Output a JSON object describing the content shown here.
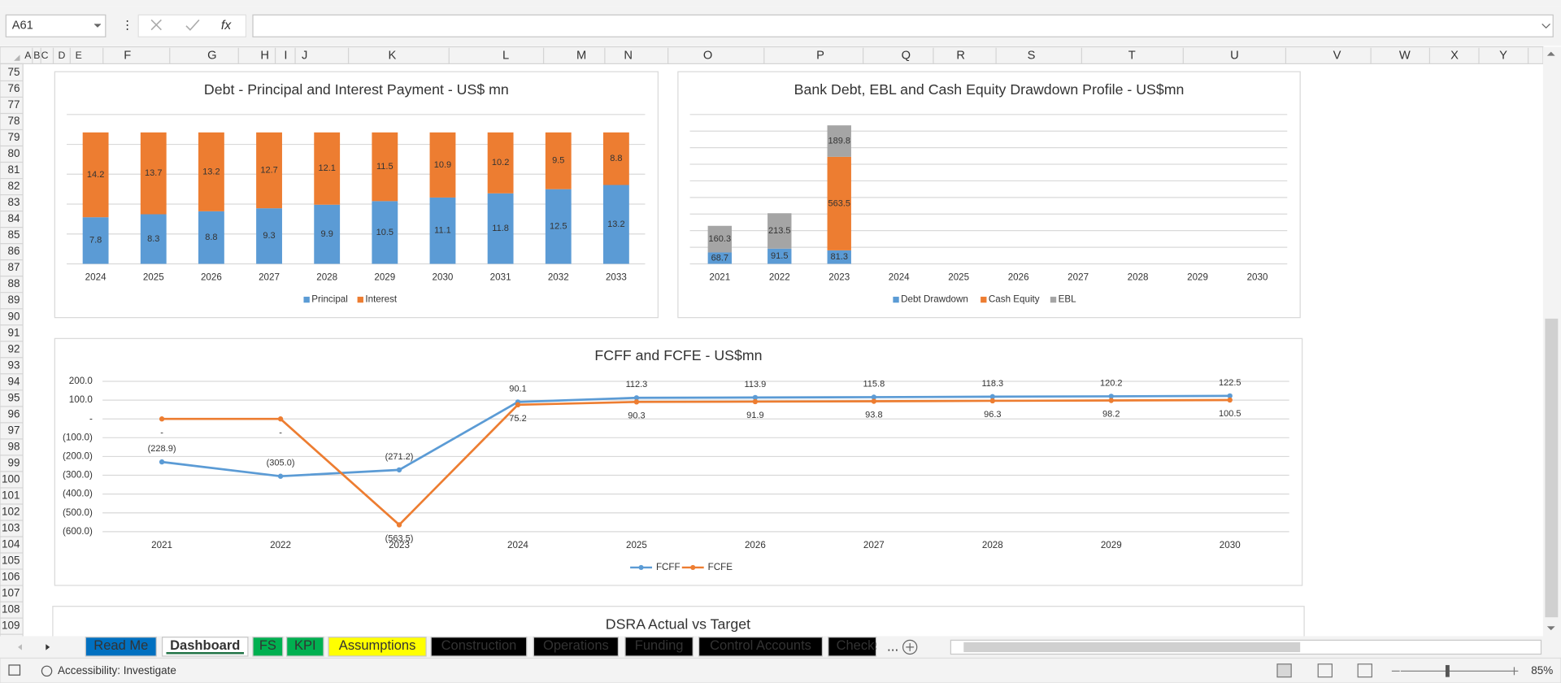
{
  "name_box": "A61",
  "formula_icon": "fx",
  "column_headers": [
    "A",
    "B",
    "C",
    "D",
    "E",
    "F",
    "G",
    "H",
    "I",
    "J",
    "K",
    "L",
    "M",
    "N",
    "O",
    "P",
    "Q",
    "R",
    "S",
    "T",
    "U",
    "V",
    "W",
    "X",
    "Y"
  ],
  "row_headers": [
    75,
    76,
    77,
    78,
    79,
    80,
    81,
    82,
    83,
    84,
    85,
    86,
    87,
    88,
    89,
    90,
    91,
    92,
    93,
    94,
    95,
    96,
    97,
    98,
    99,
    100,
    101,
    102,
    103,
    104,
    105,
    106,
    107,
    108,
    109
  ],
  "chart_data": [
    {
      "type": "bar",
      "stacked": true,
      "title": "Debt - Principal and Interest Payment - US$ mn",
      "categories": [
        "2024",
        "2025",
        "2026",
        "2027",
        "2028",
        "2029",
        "2030",
        "2031",
        "2032",
        "2033"
      ],
      "series": [
        {
          "name": "Principal",
          "color": "#5b9bd5",
          "values": [
            7.8,
            8.3,
            8.8,
            9.3,
            9.9,
            10.5,
            11.1,
            11.8,
            12.5,
            13.2
          ]
        },
        {
          "name": "Interest",
          "color": "#ed7d31",
          "values": [
            14.2,
            13.7,
            13.2,
            12.7,
            12.1,
            11.5,
            10.9,
            10.2,
            9.5,
            8.8
          ]
        }
      ],
      "ylim": [
        0,
        25
      ],
      "yticks": [
        0,
        5,
        10,
        15,
        20,
        25
      ],
      "grid": true,
      "show_y_tick_labels": false,
      "legend": "bottom"
    },
    {
      "type": "bar",
      "stacked": true,
      "title": "Bank Debt, EBL and Cash Equity Drawdown Profile - US$mn",
      "categories": [
        "2021",
        "2022",
        "2023",
        "2024",
        "2025",
        "2026",
        "2027",
        "2028",
        "2029",
        "2030"
      ],
      "series": [
        {
          "name": "Debt Drawdown",
          "color": "#5b9bd5",
          "values": [
            68.7,
            91.5,
            81.3,
            0,
            0,
            0,
            0,
            0,
            0,
            0
          ]
        },
        {
          "name": "Cash Equity",
          "color": "#ed7d31",
          "values": [
            0,
            0,
            563.5,
            0,
            0,
            0,
            0,
            0,
            0,
            0
          ]
        },
        {
          "name": "EBL",
          "color": "#a5a5a5",
          "values": [
            160.3,
            213.5,
            189.8,
            0,
            0,
            0,
            0,
            0,
            0,
            0
          ]
        }
      ],
      "ylim": [
        0,
        900
      ],
      "yticks": [
        0,
        100,
        200,
        300,
        400,
        500,
        600,
        700,
        800,
        900
      ],
      "grid": true,
      "show_y_tick_labels": false,
      "legend": "bottom"
    },
    {
      "type": "line",
      "title": "FCFF and FCFE - US$mn",
      "categories": [
        "2021",
        "2022",
        "2023",
        "2024",
        "2025",
        "2026",
        "2027",
        "2028",
        "2029",
        "2030"
      ],
      "series": [
        {
          "name": "FCFF",
          "color": "#5b9bd5",
          "values": [
            -228.9,
            -305.0,
            -271.2,
            90.1,
            112.3,
            113.9,
            115.8,
            118.3,
            120.2,
            122.5
          ],
          "value_labels": [
            "(228.9)",
            "(305.0)",
            "(271.2)",
            "90.1",
            "112.3",
            "113.9",
            "115.8",
            "118.3",
            "120.2",
            "122.5"
          ]
        },
        {
          "name": "FCFE",
          "color": "#ed7d31",
          "values": [
            0,
            0,
            -563.5,
            75.2,
            90.3,
            91.9,
            93.8,
            96.3,
            98.2,
            100.5
          ],
          "value_labels": [
            "-",
            "-",
            "(563.5)",
            "75.2",
            "90.3",
            "91.9",
            "93.8",
            "96.3",
            "98.2",
            "100.5"
          ]
        }
      ],
      "ylim": [
        -600,
        200
      ],
      "yticks": [
        {
          "value": 200,
          "label": "200.0"
        },
        {
          "value": 100,
          "label": "100.0"
        },
        {
          "value": 0,
          "label": "-"
        },
        {
          "value": -100,
          "label": "(100.0)"
        },
        {
          "value": -200,
          "label": "(200.0)"
        },
        {
          "value": -300,
          "label": "(300.0)"
        },
        {
          "value": -400,
          "label": "(400.0)"
        },
        {
          "value": -500,
          "label": "(500.0)"
        },
        {
          "value": -600,
          "label": "(600.0)"
        }
      ],
      "grid": true,
      "legend": "bottom"
    }
  ],
  "partial_chart_title": "DSRA Actual vs Target",
  "sheet_tabs": [
    {
      "label": "Read Me",
      "color": "#0070c0"
    },
    {
      "label": "Dashboard",
      "color": "#ffffff"
    },
    {
      "label": "FS",
      "color": "#00b050"
    },
    {
      "label": "KPI",
      "color": "#00b050"
    },
    {
      "label": "Assumptions",
      "color": "#ffff00"
    },
    {
      "label": "Construction",
      "color": "#000000"
    },
    {
      "label": "Operations",
      "color": "#000000"
    },
    {
      "label": "Funding",
      "color": "#000000"
    },
    {
      "label": "Control Accounts",
      "color": "#000000"
    },
    {
      "label": "Checks",
      "color": "#000000"
    }
  ],
  "more_tabs": "...",
  "status_text": "Accessibility: Investigate",
  "zoom": "85%"
}
